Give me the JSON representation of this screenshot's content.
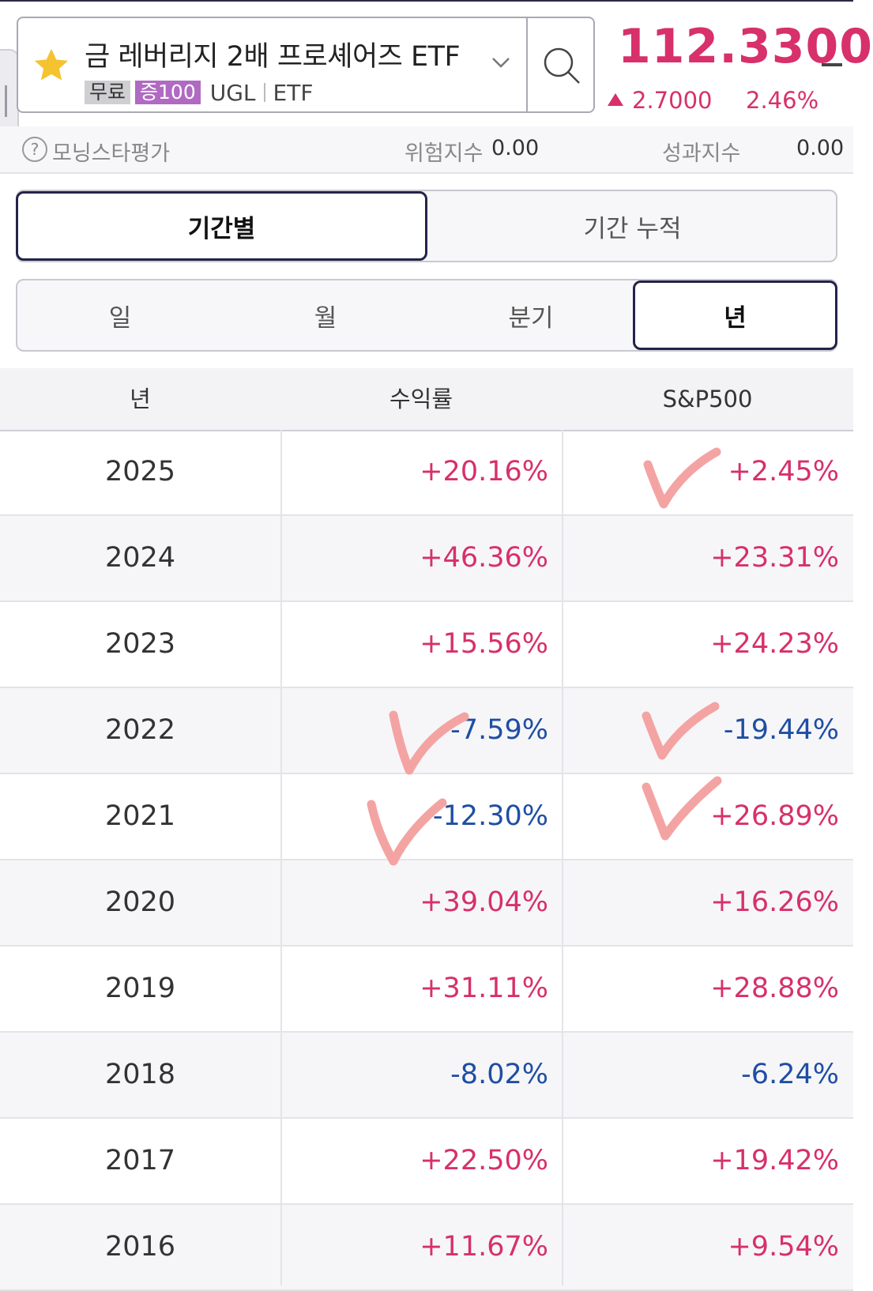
{
  "header": {
    "title": "금 레버리지 2배 프로셰어즈 ETF",
    "badges": {
      "free": "무료",
      "margin": "증100",
      "symbol": "UGL",
      "type": "ETF"
    },
    "price": "112.3300",
    "change": "2.7000",
    "change_pct": "2.46%",
    "icons": [
      "star-icon",
      "chevron-down-icon",
      "search-icon",
      "up-triangle-icon"
    ]
  },
  "rating_bar": {
    "label": "모닝스타평가",
    "risk_label": "위험지수",
    "risk_value": "0.00",
    "performance_label": "성과지수",
    "performance_value": "0.00"
  },
  "period_tabs": {
    "items": [
      "기간별",
      "기간 누적"
    ],
    "active": "기간별"
  },
  "unit_tabs": {
    "items": [
      "일",
      "월",
      "분기",
      "년"
    ],
    "active": "년"
  },
  "table": {
    "headers": [
      "년",
      "수익률",
      "S&P500"
    ],
    "rows": [
      {
        "year": "2025",
        "return": "+20.16%",
        "sp500": "+2.45%"
      },
      {
        "year": "2024",
        "return": "+46.36%",
        "sp500": "+23.31%"
      },
      {
        "year": "2023",
        "return": "+15.56%",
        "sp500": "+24.23%"
      },
      {
        "year": "2022",
        "return": "-7.59%",
        "sp500": "-19.44%"
      },
      {
        "year": "2021",
        "return": "-12.30%",
        "sp500": "+26.89%"
      },
      {
        "year": "2020",
        "return": "+39.04%",
        "sp500": "+16.26%"
      },
      {
        "year": "2019",
        "return": "+31.11%",
        "sp500": "+28.88%"
      },
      {
        "year": "2018",
        "return": "-8.02%",
        "sp500": "-6.24%"
      },
      {
        "year": "2017",
        "return": "+22.50%",
        "sp500": "+19.42%"
      },
      {
        "year": "2016",
        "return": "+11.67%",
        "sp500": "+9.54%"
      }
    ]
  },
  "colors": {
    "positive": "#d7306b",
    "negative": "#1f4ea3",
    "active_border": "#23234a",
    "annotation": "#f4a3a3"
  }
}
